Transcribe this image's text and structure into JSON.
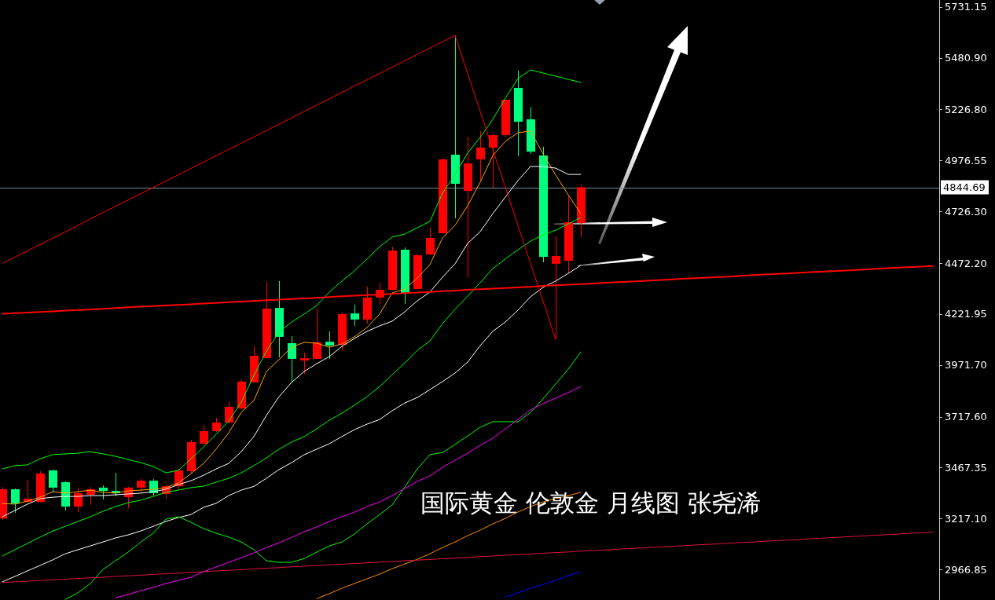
{
  "chart_data": {
    "type": "candlestick",
    "title": "国际黄金 伦敦金 月线图 张尧浠",
    "categories": [
      null,
      null,
      null,
      null,
      null,
      null,
      null,
      null,
      null,
      null,
      null,
      null,
      null,
      null,
      null,
      null,
      null,
      null,
      null,
      null,
      null,
      null,
      null,
      null,
      null,
      null,
      null,
      null,
      null,
      null,
      null,
      null,
      null,
      null,
      null,
      null,
      null,
      null,
      null,
      null,
      null,
      null,
      null,
      null,
      null,
      null,
      null,
      null,
      null,
      null,
      null,
      null,
      null,
      null,
      null,
      null,
      null,
      null,
      null,
      null,
      null,
      null,
      null,
      null,
      null,
      null,
      null,
      null,
      null,
      null,
      null,
      null,
      null,
      null,
      null
    ],
    "ohlc": [
      [
        3218,
        3373,
        3210,
        3361
      ],
      [
        3361,
        3365,
        3245,
        3291
      ],
      [
        3299,
        3407,
        3295,
        3315
      ],
      [
        3299,
        3450,
        3295,
        3438
      ],
      [
        3454,
        3457,
        3346,
        3369
      ],
      [
        3396,
        3400,
        3257,
        3276
      ],
      [
        3276,
        3369,
        3249,
        3342
      ],
      [
        3334,
        3373,
        3284,
        3361
      ],
      [
        3369,
        3380,
        3311,
        3353
      ],
      [
        3353,
        3442,
        3326,
        3342
      ],
      [
        3322,
        3373,
        3268,
        3369
      ],
      [
        3369,
        3415,
        3346,
        3403
      ],
      [
        3403,
        3411,
        3330,
        3342
      ],
      [
        3338,
        3384,
        3315,
        3376
      ],
      [
        3376,
        3461,
        3357,
        3454
      ],
      [
        3450,
        3604,
        3438,
        3593
      ],
      [
        3585,
        3677,
        3577,
        3647
      ],
      [
        3647,
        3712,
        3643,
        3689
      ],
      [
        3689,
        3793,
        3685,
        3766
      ],
      [
        3758,
        3901,
        3755,
        3890
      ],
      [
        3886,
        4063,
        3886,
        4017
      ],
      [
        4005,
        4380,
        4005,
        4249
      ],
      [
        4252,
        4384,
        4009,
        4110
      ],
      [
        4079,
        4113,
        3886,
        4002
      ],
      [
        3994,
        4032,
        3928,
        4005
      ],
      [
        4002,
        4249,
        4002,
        4083
      ],
      [
        4086,
        4137,
        4002,
        4067
      ],
      [
        4071,
        4229,
        4040,
        4222
      ],
      [
        4225,
        4268,
        4164,
        4195
      ],
      [
        4195,
        4357,
        4175,
        4303
      ],
      [
        4303,
        4376,
        4272,
        4341
      ],
      [
        4341,
        4553,
        4337,
        4534
      ],
      [
        4538,
        4550,
        4272,
        4326
      ],
      [
        4345,
        4519,
        4341,
        4511
      ],
      [
        4515,
        4646,
        4511,
        4596
      ],
      [
        4619,
        4989,
        4619,
        4982
      ],
      [
        5005,
        5591,
        4692,
        4862
      ],
      [
        4827,
        5094,
        4403,
        4962
      ],
      [
        4982,
        5121,
        4881,
        5040
      ],
      [
        5040,
        5109,
        4843,
        5101
      ],
      [
        5101,
        5275,
        5090,
        5275
      ],
      [
        5333,
        5418,
        4997,
        5167
      ],
      [
        5179,
        5240,
        5009,
        5020
      ],
      [
        5001,
        5044,
        4476,
        4503
      ],
      [
        4469,
        4604,
        4098,
        4507
      ],
      [
        4484,
        4800,
        4422,
        4673
      ],
      [
        4669,
        4858,
        4600,
        4844.69
      ],
      null,
      null,
      null,
      null,
      null,
      null,
      null,
      null,
      null,
      null,
      null,
      null,
      null,
      null,
      null,
      null,
      null,
      null,
      null,
      null,
      null,
      null,
      null,
      null,
      null,
      null,
      null,
      null
    ],
    "colors": [
      "#ff0000",
      "#00ff7f",
      "#ff0000",
      "#ff0000",
      "#00ff7f",
      "#00ff7f",
      "#ff0000",
      "#ff0000",
      "#00ff7f",
      "#00ff7f",
      "#ff0000",
      "#ff0000",
      "#00ff7f",
      "#ff0000",
      "#ff0000",
      "#ff0000",
      "#ff0000",
      "#ff0000",
      "#ff0000",
      "#ff0000",
      "#ff0000",
      "#ff0000",
      "#00ff7f",
      "#00ff7f",
      "#ff0000",
      "#ff0000",
      "#00ff7f",
      "#ff0000",
      "#00ff7f",
      "#ff0000",
      "#ff0000",
      "#ff0000",
      "#00ff7f",
      "#ff0000",
      "#ff0000",
      "#ff0000",
      "#00ff7f",
      "#ff0000",
      "#ff0000",
      "#ff0000",
      "#ff0000",
      "#00ff7f",
      "#00ff7f",
      "#00ff7f",
      "#ff0000",
      "#ff0000",
      "#ff0000",
      null,
      null,
      null,
      null,
      null,
      null,
      null,
      null,
      null,
      null,
      null,
      null,
      null,
      null,
      null,
      null,
      null,
      null,
      null,
      null,
      null,
      null,
      null,
      null,
      null,
      null,
      null,
      null
    ],
    "series": [
      {
        "type": "line",
        "color": "#ffa500",
        "values": [
          3291,
          3288,
          3303,
          3322,
          3349,
          3342,
          3349,
          3357,
          3346,
          3342,
          3353,
          3357,
          3361,
          3369,
          3392,
          3438,
          3488,
          3558,
          3639,
          3739,
          3797,
          3940,
          3998,
          4059,
          4083,
          4079,
          4059,
          4075,
          4110,
          4156,
          4222,
          4326,
          4345,
          4399,
          4465,
          4596,
          4658,
          4754,
          4870,
          5001,
          5070,
          5113,
          5121,
          5009,
          4905,
          4808,
          4715,
          null,
          null,
          null,
          null,
          null,
          null,
          null,
          null,
          null,
          null,
          null,
          null,
          null,
          null,
          null,
          null,
          null,
          null,
          null,
          null,
          null,
          null,
          null,
          null,
          null,
          null,
          null,
          null
        ]
      },
      {
        "type": "line",
        "color": "#ffffff",
        "values": [
          3226,
          3257,
          3288,
          3315,
          3322,
          3326,
          3326,
          3330,
          3330,
          3334,
          3338,
          3342,
          3349,
          3361,
          3384,
          3403,
          3430,
          3461,
          3488,
          3546,
          3620,
          3724,
          3816,
          3886,
          3940,
          3978,
          4013,
          4063,
          4102,
          4137,
          4164,
          4187,
          4233,
          4287,
          4330,
          4403,
          4469,
          4569,
          4627,
          4715,
          4797,
          4878,
          4947,
          4947,
          4939,
          4908,
          4908,
          null,
          null,
          null,
          null,
          null,
          null,
          null,
          null,
          null,
          null,
          null,
          null,
          null,
          null,
          null,
          null,
          null,
          null,
          null,
          null,
          null,
          null,
          null,
          null,
          null,
          null,
          null,
          null
        ]
      },
      {
        "type": "line",
        "color": "#ffffff",
        "values": [
          2906,
          2933,
          2960,
          2987,
          3014,
          3044,
          3064,
          3083,
          3102,
          3122,
          3137,
          3156,
          3179,
          3203,
          3222,
          3237,
          3272,
          3292,
          3330,
          3357,
          3375,
          3415,
          3458,
          3492,
          3531,
          3558,
          3585,
          3620,
          3654,
          3681,
          3704,
          3747,
          3785,
          3812,
          3851,
          3890,
          3932,
          3986,
          4067,
          4137,
          4183,
          4241,
          4307,
          4353,
          4384,
          4422,
          4461,
          null,
          null,
          null,
          null,
          null,
          null,
          null,
          null,
          null,
          null,
          null,
          null,
          null,
          null,
          null,
          null,
          null,
          null,
          null,
          null,
          null,
          null,
          null,
          null,
          null,
          null,
          null,
          null
        ]
      },
      {
        "type": "line",
        "color": "#00ff00",
        "values": [
          3461,
          3477,
          3481,
          3511,
          3531,
          3535,
          3538,
          3546,
          3535,
          3523,
          3507,
          3492,
          3473,
          3442,
          3454,
          3511,
          3569,
          3631,
          3697,
          3789,
          3920,
          4040,
          4133,
          4183,
          4222,
          4264,
          4330,
          4384,
          4434,
          4492,
          4553,
          4600,
          4615,
          4646,
          4677,
          4816,
          4908,
          5013,
          5090,
          5179,
          5283,
          5379,
          5422,
          5406,
          5391,
          5375,
          5360,
          null,
          null,
          null,
          null,
          null,
          null,
          null,
          null,
          null,
          null,
          null,
          null,
          null,
          null,
          null,
          null,
          null,
          null,
          null,
          null,
          null,
          null,
          null,
          null,
          null,
          null,
          null,
          null
        ]
      },
      {
        "type": "line",
        "color": "#00ff00",
        "values": [
          3033,
          3064,
          3095,
          3126,
          3156,
          3179,
          3203,
          3226,
          3253,
          3276,
          3295,
          3307,
          3326,
          3346,
          3357,
          3369,
          3376,
          3396,
          3415,
          3442,
          3477,
          3515,
          3558,
          3593,
          3620,
          3658,
          3700,
          3735,
          3774,
          3816,
          3866,
          3924,
          3982,
          4044,
          4090,
          4175,
          4245,
          4310,
          4376,
          4446,
          4492,
          4538,
          4580,
          4611,
          4634,
          4665,
          4696,
          null,
          null,
          null,
          null,
          null,
          null,
          null,
          null,
          null,
          null,
          null,
          null,
          null,
          null,
          null,
          null,
          null,
          null,
          null,
          null,
          null,
          null,
          null,
          null,
          null,
          null,
          null,
          null
        ]
      },
      {
        "type": "line",
        "color": "#00ff00",
        "values": [
          null,
          null,
          null,
          null,
          null,
          2820,
          2852,
          2898,
          2967,
          3010,
          3052,
          3102,
          3145,
          3214,
          3226,
          3199,
          3168,
          3145,
          3126,
          3102,
          3064,
          3010,
          3002,
          3002,
          3021,
          3052,
          3083,
          3102,
          3141,
          3191,
          3237,
          3284,
          3372,
          3461,
          3531,
          3542,
          3581,
          3623,
          3666,
          3693,
          3693,
          3693,
          3739,
          3805,
          3878,
          3951,
          4036,
          null,
          null,
          null,
          null,
          null,
          null,
          null,
          null,
          null,
          null,
          null,
          null,
          null,
          null,
          null,
          null,
          null,
          null,
          null,
          null,
          null,
          null,
          null,
          null,
          null,
          null,
          null,
          null
        ]
      },
      {
        "type": "line",
        "color": "#ff00ff",
        "values": [
          null,
          null,
          null,
          null,
          null,
          null,
          null,
          null,
          null,
          2828,
          2844,
          2863,
          2879,
          2898,
          2913,
          2929,
          2956,
          2979,
          3002,
          3025,
          3048,
          3075,
          3098,
          3125,
          3152,
          3176,
          3203,
          3226,
          3249,
          3276,
          3299,
          3330,
          3365,
          3400,
          3427,
          3469,
          3504,
          3538,
          3577,
          3612,
          3658,
          3704,
          3751,
          3782,
          3809,
          3836,
          3866,
          null,
          null,
          null,
          null,
          null,
          null,
          null,
          null,
          null,
          null,
          null,
          null,
          null,
          null,
          null,
          null,
          null,
          null,
          null,
          null,
          null,
          null,
          null,
          null,
          null,
          null,
          null,
          null
        ]
      },
      {
        "type": "line",
        "color": "#ff8c00",
        "values": [
          null,
          null,
          null,
          null,
          null,
          null,
          null,
          null,
          null,
          null,
          null,
          null,
          null,
          null,
          null,
          null,
          null,
          null,
          null,
          null,
          null,
          null,
          null,
          null,
          null,
          2824,
          2848,
          2875,
          2898,
          2921,
          2944,
          2971,
          2994,
          3017,
          3044,
          3075,
          3102,
          3133,
          3160,
          3191,
          3218,
          3249,
          3276,
          3299,
          3315,
          3330,
          3346,
          null,
          null,
          null,
          null,
          null,
          null,
          null,
          null,
          null,
          null,
          null,
          null,
          null,
          null,
          null,
          null,
          null,
          null,
          null,
          null,
          null,
          null,
          null,
          null,
          null,
          null,
          null,
          null
        ]
      },
      {
        "type": "line",
        "color": "#0000ff",
        "values": [
          null,
          null,
          null,
          null,
          null,
          null,
          null,
          null,
          null,
          null,
          null,
          null,
          null,
          null,
          null,
          null,
          null,
          null,
          null,
          null,
          null,
          null,
          null,
          null,
          null,
          null,
          null,
          null,
          null,
          null,
          null,
          null,
          null,
          null,
          null,
          null,
          null,
          null,
          null,
          null,
          2832,
          2852,
          2875,
          2894,
          2913,
          2937,
          2956,
          null,
          null,
          null,
          null,
          null,
          null,
          null,
          null,
          null,
          null,
          null,
          null,
          null,
          null,
          null,
          null,
          null,
          null,
          null,
          null,
          null,
          null,
          null,
          null,
          null,
          null,
          null,
          null
        ]
      },
      {
        "type": "line",
        "color": "#ff0000",
        "values": [
          4223,
          4226,
          4229,
          4232,
          4235,
          4239,
          4242,
          4245,
          4248,
          4251,
          4255,
          4258,
          4261,
          4264,
          4267,
          4270,
          4274,
          4277,
          4280,
          4283,
          4286,
          4290,
          4293,
          4296,
          4299,
          4302,
          4305,
          4309,
          4312,
          4315,
          4318,
          4321,
          4325,
          4328,
          4331,
          4334,
          4337,
          4341,
          4344,
          4347,
          4350,
          4353,
          4356,
          4360,
          4363,
          4366,
          4369,
          4372,
          4376,
          4379,
          4382,
          4385,
          4388,
          4391,
          4395,
          4398,
          4401,
          4404,
          4407,
          4411,
          4414,
          4417,
          4420,
          4423,
          4427,
          4430,
          4433,
          4436,
          4439,
          4442,
          4446,
          4449,
          4452,
          4455,
          4458
        ]
      },
      {
        "type": "line",
        "color": "#dc143c",
        "values": [
          2903,
          2906,
          2909,
          2913,
          2916,
          2919,
          2923,
          2926,
          2929,
          2933,
          2936,
          2939,
          2943,
          2946,
          2949,
          2953,
          2956,
          2960,
          2963,
          2966,
          2970,
          2973,
          2976,
          2980,
          2983,
          2986,
          2990,
          2993,
          2996,
          3000,
          3003,
          3006,
          3010,
          3013,
          3016,
          3020,
          3023,
          3026,
          3030,
          3033,
          3037,
          3040,
          3043,
          3047,
          3050,
          3053,
          3057,
          3060,
          3063,
          3067,
          3070,
          3073,
          3077,
          3080,
          3083,
          3087,
          3090,
          3093,
          3097,
          3100,
          3103,
          3107,
          3110,
          3113,
          3117,
          3120,
          3124,
          3127,
          3130,
          3134,
          3137,
          3140,
          3144,
          3147,
          3150
        ]
      },
      {
        "type": "line",
        "color": "#ff0000",
        "values": [
          4471,
          4502,
          4533,
          4564,
          4595,
          4626,
          4657,
          4689,
          4720,
          4751,
          4782,
          4813,
          4844,
          4875,
          4906,
          4938,
          4969,
          5000,
          5031,
          5062,
          5093,
          5124,
          5155,
          5186,
          5218,
          5249,
          5280,
          5311,
          5342,
          5373,
          5404,
          5435,
          5467,
          5498,
          5529,
          5560,
          5591,
          5404,
          5218,
          5031,
          4845,
          4658,
          4471,
          4285,
          4098,
          null,
          null,
          null,
          null,
          null,
          null,
          null,
          null,
          null,
          null,
          null,
          null,
          null,
          null,
          null,
          null,
          null,
          null,
          null,
          null,
          null,
          null,
          null,
          null,
          null,
          null,
          null,
          null,
          null,
          null
        ]
      }
    ],
    "ylim": [
      2817,
      5765
    ],
    "yticks": [
      5731.15,
      {
        "value": 5480.9,
        "label": "5480.90"
      },
      {
        "value": 5226.8,
        "label": "5226.80"
      },
      4976.55,
      {
        "value": 4726.3,
        "label": "4726.30"
      },
      {
        "value": 4472.2,
        "label": "4472.20"
      },
      4221.95,
      {
        "value": 3971.7,
        "label": "3971.70"
      },
      {
        "value": 3717.6,
        "label": "3717.60"
      },
      3467.35,
      {
        "value": 3217.1,
        "label": "3217.10"
      },
      2966.85
    ],
    "ref_lines": [
      {
        "axis": "y",
        "value": 4844.69,
        "label": "4844.69",
        "color": "#778899"
      }
    ],
    "tick_labels": "y"
  }
}
